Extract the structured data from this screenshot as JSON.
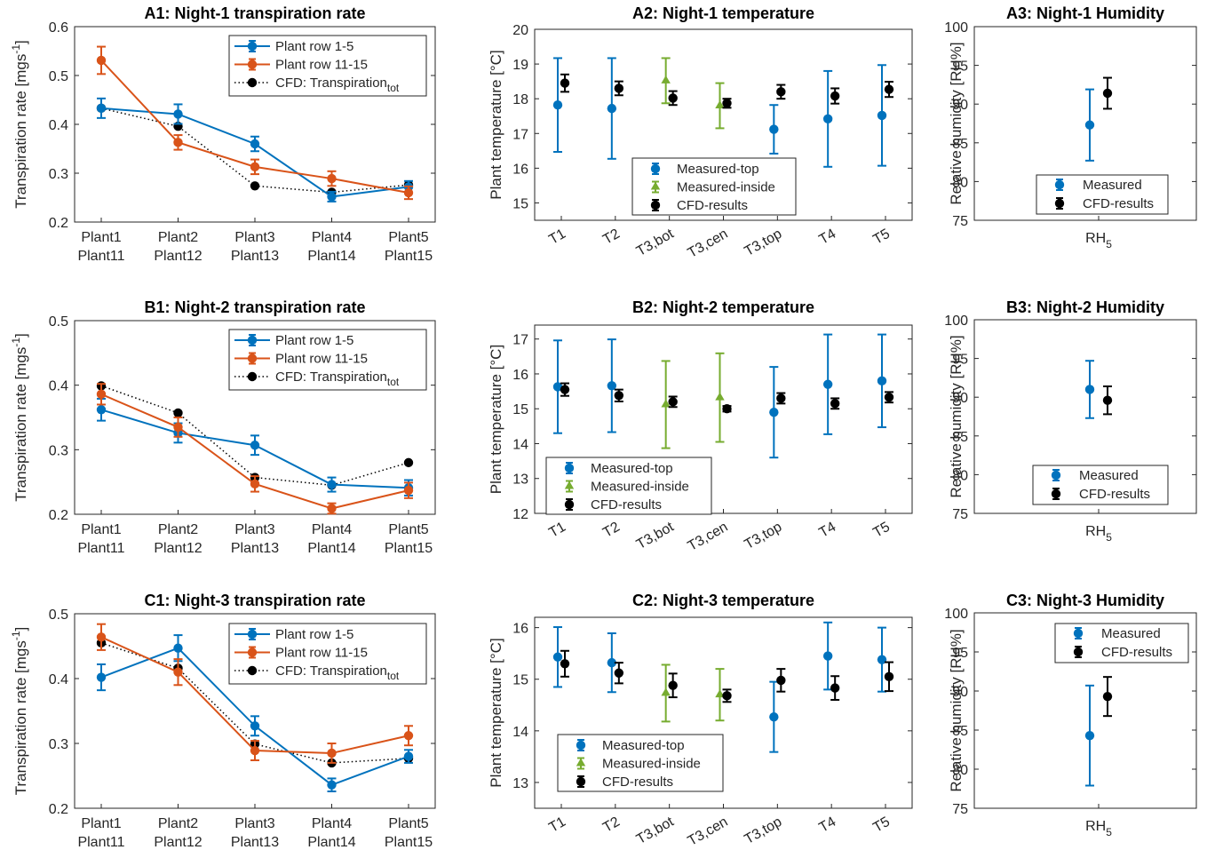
{
  "colors": {
    "blue": "#0072bd",
    "orange": "#d95319",
    "green": "#77ac30",
    "black": "#000000"
  },
  "chart_data": [
    {
      "id": "A1",
      "type": "line",
      "title": "A1: Night-1 transpiration rate",
      "ylabel": "Transpiration rate [mgs",
      "ylabel_sup": "-1",
      "ylabel_end": "]",
      "ylim": [
        0.2,
        0.6
      ],
      "yticks": [
        "0.2",
        "0.3",
        "0.4",
        "0.5",
        "0.6"
      ],
      "categories": [
        [
          "Plant1",
          "Plant11"
        ],
        [
          "Plant2",
          "Plant12"
        ],
        [
          "Plant3",
          "Plant13"
        ],
        [
          "Plant4",
          "Plant14"
        ],
        [
          "Plant5",
          "Plant15"
        ]
      ],
      "legend": {
        "placement": "top-right",
        "entries": [
          "Plant row 1-5",
          "Plant row 11-15",
          "CFD: Transpiration"
        ],
        "sub": "tot"
      },
      "series": [
        {
          "name": "Plant row 1-5",
          "values": [
            0.433,
            0.421,
            0.36,
            0.252,
            0.272
          ],
          "err": [
            0.02,
            0.02,
            0.015,
            0.01,
            0.012
          ]
        },
        {
          "name": "Plant row 11-15",
          "values": [
            0.531,
            0.363,
            0.313,
            0.289,
            0.26
          ],
          "err": [
            0.028,
            0.015,
            0.015,
            0.015,
            0.013
          ]
        },
        {
          "name": "CFD: Transpiration",
          "values": [
            0.433,
            0.396,
            0.274,
            0.261,
            0.276
          ]
        }
      ]
    },
    {
      "id": "A2",
      "type": "scatter",
      "title": "A2: Night-1 temperature",
      "ylabel": "Plant temperature [°C]",
      "ylim": [
        14.5,
        20
      ],
      "yticks": [
        "15",
        "16",
        "17",
        "18",
        "19",
        "20"
      ],
      "categories": [
        "T1",
        "T2",
        "T3,bot",
        "T3,cen",
        "T3,top",
        "T4",
        "T5"
      ],
      "legend": {
        "placement": "bottom-center",
        "entries": [
          "Measured-top",
          "Measured-inside",
          "CFD-results"
        ]
      },
      "series": [
        {
          "name": "Measured-top",
          "points": [
            [
              0,
              17.82,
              1.35
            ],
            [
              1,
              17.72,
              1.45
            ],
            [
              4,
              17.12,
              0.7
            ],
            [
              5,
              17.42,
              1.38
            ],
            [
              6,
              17.52,
              1.45
            ]
          ]
        },
        {
          "name": "Measured-inside",
          "points": [
            [
              2,
              18.52,
              0.65
            ],
            [
              3,
              17.8,
              0.65
            ]
          ]
        },
        {
          "name": "CFD-results",
          "points": [
            [
              0,
              18.45,
              0.25
            ],
            [
              1,
              18.3,
              0.2
            ],
            [
              2,
              18.02,
              0.2
            ],
            [
              3,
              17.87,
              0.13
            ],
            [
              4,
              18.2,
              0.2
            ],
            [
              5,
              18.08,
              0.22
            ],
            [
              6,
              18.27,
              0.22
            ]
          ]
        }
      ]
    },
    {
      "id": "A3",
      "type": "scatter",
      "title": "A3: Night-1 Humidity",
      "ylabel": "Relative humidity [RH%]",
      "ylim": [
        75,
        100
      ],
      "yticks": [
        "75",
        "80",
        "85",
        "90",
        "95",
        "100"
      ],
      "xlabel": "RH",
      "xlabel_sub": "5",
      "legend": {
        "placement": "bottom-center",
        "entries": [
          "Measured",
          "CFD-results"
        ]
      },
      "series": [
        {
          "name": "Measured",
          "value": 87.3,
          "err": 4.6
        },
        {
          "name": "CFD-results",
          "value": 91.4,
          "err": 2.0
        }
      ]
    },
    {
      "id": "B1",
      "type": "line",
      "title": "B1: Night-2 transpiration rate",
      "ylabel": "Transpiration rate [mgs",
      "ylabel_sup": "-1",
      "ylabel_end": "]",
      "ylim": [
        0.2,
        0.5
      ],
      "yticks": [
        "0.2",
        "0.3",
        "0.4",
        "0.5"
      ],
      "categories": [
        [
          "Plant1",
          "Plant11"
        ],
        [
          "Plant2",
          "Plant12"
        ],
        [
          "Plant3",
          "Plant13"
        ],
        [
          "Plant4",
          "Plant14"
        ],
        [
          "Plant5",
          "Plant15"
        ]
      ],
      "legend": {
        "placement": "top-right",
        "entries": [
          "Plant row 1-5",
          "Plant row 11-15",
          "CFD: Transpiration"
        ],
        "sub": "tot"
      },
      "series": [
        {
          "name": "Plant row 1-5",
          "values": [
            0.362,
            0.326,
            0.307,
            0.246,
            0.241
          ],
          "err": [
            0.017,
            0.015,
            0.015,
            0.011,
            0.012
          ]
        },
        {
          "name": "Plant row 11-15",
          "values": [
            0.386,
            0.335,
            0.247,
            0.209,
            0.237
          ],
          "err": [
            0.016,
            0.015,
            0.012,
            0.008,
            0.012
          ]
        },
        {
          "name": "CFD: Transpiration",
          "values": [
            0.399,
            0.357,
            0.257,
            0.245,
            0.28
          ]
        }
      ]
    },
    {
      "id": "B2",
      "type": "scatter",
      "title": "B2: Night-2 temperature",
      "ylabel": "Plant temperature [°C]",
      "ylim": [
        12,
        17.4
      ],
      "yticks": [
        "12",
        "13",
        "14",
        "15",
        "16",
        "17"
      ],
      "categories": [
        "T1",
        "T2",
        "T3,bot",
        "T3,cen",
        "T3,top",
        "T4",
        "T5"
      ],
      "legend": {
        "placement": "bottom-left",
        "entries": [
          "Measured-top",
          "Measured-inside",
          "CFD-results"
        ]
      },
      "series": [
        {
          "name": "Measured-top",
          "points": [
            [
              0,
              15.63,
              1.33
            ],
            [
              1,
              15.66,
              1.33
            ],
            [
              4,
              14.9,
              1.3
            ],
            [
              5,
              15.7,
              1.43
            ],
            [
              6,
              15.8,
              1.33
            ]
          ]
        },
        {
          "name": "Measured-inside",
          "points": [
            [
              2,
              15.12,
              1.25
            ],
            [
              3,
              15.32,
              1.27
            ]
          ]
        },
        {
          "name": "CFD-results",
          "points": [
            [
              0,
              15.55,
              0.18
            ],
            [
              1,
              15.38,
              0.17
            ],
            [
              2,
              15.2,
              0.15
            ],
            [
              3,
              15.0,
              0.08
            ],
            [
              4,
              15.3,
              0.15
            ],
            [
              5,
              15.15,
              0.15
            ],
            [
              6,
              15.33,
              0.15
            ]
          ]
        }
      ]
    },
    {
      "id": "B3",
      "type": "scatter",
      "title": "B3: Night-2 Humidity",
      "ylabel": "Relative humidity [RH%]",
      "ylim": [
        75,
        100
      ],
      "yticks": [
        "75",
        "80",
        "85",
        "90",
        "95",
        "100"
      ],
      "xlabel": "RH",
      "xlabel_sub": "5",
      "legend": {
        "placement": "bottom-center",
        "entries": [
          "Measured",
          "CFD-results"
        ]
      },
      "series": [
        {
          "name": "Measured",
          "value": 91.0,
          "err": 3.7
        },
        {
          "name": "CFD-results",
          "value": 89.6,
          "err": 1.8
        }
      ]
    },
    {
      "id": "C1",
      "type": "line",
      "title": "C1: Night-3 transpiration rate",
      "ylabel": "Transpiration rate [mgs",
      "ylabel_sup": "-1",
      "ylabel_end": "]",
      "ylim": [
        0.2,
        0.5
      ],
      "yticks": [
        "0.2",
        "0.3",
        "0.4",
        "0.5"
      ],
      "categories": [
        [
          "Plant1",
          "Plant11"
        ],
        [
          "Plant2",
          "Plant12"
        ],
        [
          "Plant3",
          "Plant13"
        ],
        [
          "Plant4",
          "Plant14"
        ],
        [
          "Plant5",
          "Plant15"
        ]
      ],
      "legend": {
        "placement": "top-right",
        "entries": [
          "Plant row 1-5",
          "Plant row 11-15",
          "CFD: Transpiration"
        ],
        "sub": "tot"
      },
      "series": [
        {
          "name": "Plant row 1-5",
          "values": [
            0.402,
            0.447,
            0.327,
            0.236,
            0.28
          ],
          "err": [
            0.02,
            0.02,
            0.015,
            0.01,
            0.01
          ]
        },
        {
          "name": "Plant row 11-15",
          "values": [
            0.464,
            0.41,
            0.289,
            0.285,
            0.312
          ],
          "err": [
            0.02,
            0.02,
            0.015,
            0.015,
            0.015
          ]
        },
        {
          "name": "CFD: Transpiration",
          "values": [
            0.455,
            0.416,
            0.299,
            0.27,
            0.277
          ]
        }
      ]
    },
    {
      "id": "C2",
      "type": "scatter",
      "title": "C2: Night-3 temperature",
      "ylabel": "Plant temperature [°C]",
      "ylim": [
        12.5,
        16.2
      ],
      "yticks": [
        "13",
        "14",
        "15",
        "16"
      ],
      "categories": [
        "T1",
        "T2",
        "T3,bot",
        "T3,cen",
        "T3,top",
        "T4",
        "T5"
      ],
      "legend": {
        "placement": "bottom-left",
        "entries": [
          "Measured-top",
          "Measured-inside",
          "CFD-results"
        ]
      },
      "series": [
        {
          "name": "Measured-top",
          "points": [
            [
              0,
              15.43,
              0.58
            ],
            [
              1,
              15.32,
              0.57
            ],
            [
              4,
              14.27,
              0.68
            ],
            [
              5,
              15.45,
              0.65
            ],
            [
              6,
              15.38,
              0.62
            ]
          ]
        },
        {
          "name": "Measured-inside",
          "points": [
            [
              2,
              14.73,
              0.55
            ],
            [
              3,
              14.7,
              0.5
            ]
          ]
        },
        {
          "name": "CFD-results",
          "points": [
            [
              0,
              15.3,
              0.25
            ],
            [
              1,
              15.12,
              0.2
            ],
            [
              2,
              14.88,
              0.23
            ],
            [
              3,
              14.68,
              0.12
            ],
            [
              4,
              14.98,
              0.22
            ],
            [
              5,
              14.83,
              0.23
            ],
            [
              6,
              15.05,
              0.28
            ]
          ]
        }
      ]
    },
    {
      "id": "C3",
      "type": "scatter",
      "title": "C3: Night-3 Humidity",
      "ylabel": "Relative humidity [RH%]",
      "ylim": [
        75,
        100
      ],
      "yticks": [
        "75",
        "80",
        "85",
        "90",
        "95",
        "100"
      ],
      "xlabel": "RH",
      "xlabel_sub": "5",
      "legend": {
        "placement": "top-right",
        "entries": [
          "Measured",
          "CFD-results"
        ]
      },
      "series": [
        {
          "name": "Measured",
          "value": 84.3,
          "err": 6.4
        },
        {
          "name": "CFD-results",
          "value": 89.3,
          "err": 2.5
        }
      ]
    }
  ]
}
